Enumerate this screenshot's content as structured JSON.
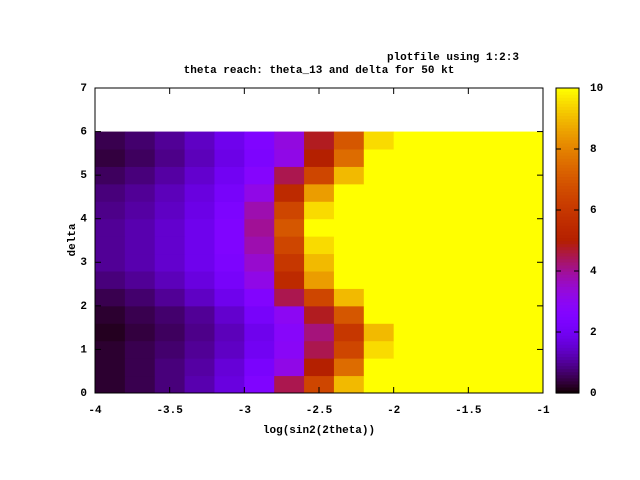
{
  "chart_data": {
    "type": "heatmap",
    "title": "theta reach: theta_13 and delta for 50 kt",
    "legend_title": "plotfile using 1:2:3",
    "xlabel": "log(sin2(2theta))",
    "ylabel": "delta",
    "colormap": "gnuplot",
    "x": [
      -3.9,
      -3.7,
      -3.5,
      -3.3,
      -3.1,
      -2.9,
      -2.7,
      -2.5,
      -2.3,
      -2.1,
      -1.9,
      -1.7,
      -1.5,
      -1.3,
      -1.1
    ],
    "y": [
      0.2,
      0.6,
      1.0,
      1.4,
      1.8,
      2.2,
      2.6,
      3.0,
      3.4,
      3.8,
      4.2,
      4.6,
      5.0,
      5.4,
      5.8
    ],
    "z": [
      [
        0.3,
        0.5,
        0.8,
        1.2,
        1.7,
        2.5,
        4.5,
        6.5,
        9,
        10,
        10,
        10,
        10,
        10,
        10
      ],
      [
        0.3,
        0.5,
        0.8,
        1.1,
        1.6,
        2.3,
        3.2,
        5,
        7.5,
        10,
        10,
        10,
        10,
        10,
        10
      ],
      [
        0.3,
        0.5,
        0.7,
        1.0,
        1.4,
        2.0,
        2.9,
        4.5,
        6.5,
        9.5,
        10,
        10,
        10,
        10,
        10
      ],
      [
        0.2,
        0.4,
        0.6,
        0.9,
        1.3,
        1.9,
        2.8,
        4.2,
        6,
        9,
        10,
        10,
        10,
        10,
        10
      ],
      [
        0.3,
        0.5,
        0.7,
        1.0,
        1.5,
        2.2,
        3.0,
        4.8,
        7,
        10,
        10,
        10,
        10,
        10,
        10
      ],
      [
        0.5,
        0.7,
        1.0,
        1.4,
        1.9,
        2.6,
        4.5,
        6.5,
        9,
        10,
        10,
        10,
        10,
        10,
        10
      ],
      [
        0.8,
        1.0,
        1.3,
        1.7,
        2.2,
        3.2,
        5.5,
        8.5,
        10,
        10,
        10,
        10,
        10,
        10,
        10
      ],
      [
        1.0,
        1.2,
        1.5,
        1.9,
        2.4,
        3.5,
        6,
        9,
        10,
        10,
        10,
        10,
        10,
        10,
        10
      ],
      [
        1.0,
        1.2,
        1.5,
        1.9,
        2.5,
        3.8,
        6.5,
        9.5,
        10,
        10,
        10,
        10,
        10,
        10,
        10
      ],
      [
        1.0,
        1.2,
        1.5,
        1.9,
        2.5,
        4,
        7,
        10,
        10,
        10,
        10,
        10,
        10,
        10,
        10
      ],
      [
        0.9,
        1.1,
        1.4,
        1.8,
        2.4,
        3.8,
        6.5,
        9.5,
        10,
        10,
        10,
        10,
        10,
        10,
        10
      ],
      [
        0.8,
        1.0,
        1.3,
        1.7,
        2.2,
        3.2,
        5.5,
        8.5,
        10,
        10,
        10,
        10,
        10,
        10,
        10
      ],
      [
        0.6,
        0.8,
        1.1,
        1.5,
        2.0,
        2.7,
        4.5,
        6.5,
        9,
        10,
        10,
        10,
        10,
        10,
        10
      ],
      [
        0.4,
        0.6,
        0.9,
        1.3,
        1.8,
        2.4,
        3.2,
        5,
        7.5,
        10,
        10,
        10,
        10,
        10,
        10
      ],
      [
        0.5,
        0.7,
        1.0,
        1.4,
        1.9,
        2.5,
        3.3,
        4.8,
        7,
        9.5,
        10,
        10,
        10,
        10,
        10
      ]
    ],
    "xlim": [
      -4,
      -1
    ],
    "xticks": [
      -4,
      -3.5,
      -3,
      -2.5,
      -2,
      -1.5,
      -1
    ],
    "ylim": [
      0,
      7
    ],
    "yticks": [
      0,
      1,
      2,
      3,
      4,
      5,
      6,
      7
    ],
    "zlim": [
      0,
      10
    ],
    "zticks": [
      0,
      2,
      4,
      6,
      8,
      10
    ]
  }
}
